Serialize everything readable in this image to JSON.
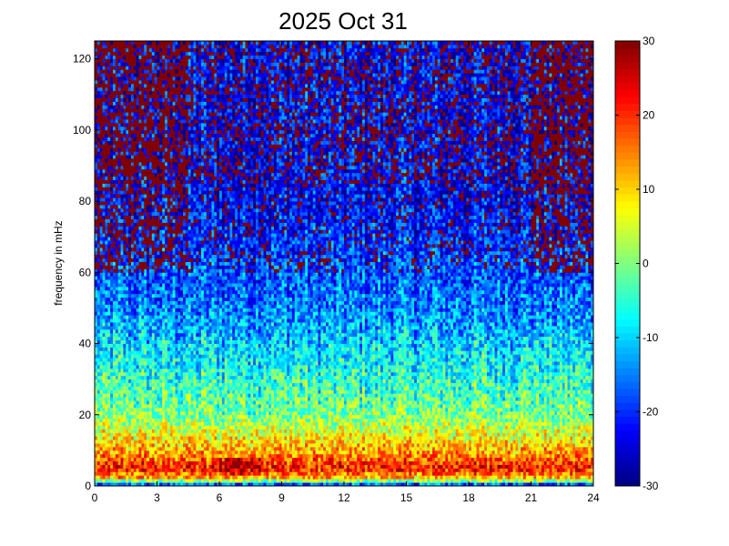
{
  "chart_data": {
    "type": "heatmap",
    "title": "2025 Oct 31",
    "xlabel": "",
    "ylabel": "frequency in mHz",
    "xlim": [
      0,
      24
    ],
    "ylim": [
      0,
      125
    ],
    "x_ticks": [
      0,
      3,
      6,
      9,
      12,
      15,
      18,
      21,
      24
    ],
    "y_ticks": [
      0,
      20,
      40,
      60,
      80,
      100,
      120
    ],
    "colorbar": {
      "colormap": "jet",
      "clim": [
        -30,
        30
      ],
      "ticks": [
        -30,
        -20,
        -10,
        0,
        10,
        20,
        30
      ]
    },
    "grid": false,
    "description_of_values": "Spectral power (colorbar units) vs hour of day (x) and frequency in mHz (y); highest power (~15-30) near 0-10 mHz, decreasing to ~-20 to -30 above 60 mHz, saturated (30) cells scattered in upper band especially hours 0-4 and 21-24.",
    "band_profile": [
      {
        "freq": 0,
        "value": -25
      },
      {
        "freq": 2,
        "value": 10
      },
      {
        "freq": 5,
        "value": 22
      },
      {
        "freq": 10,
        "value": 12
      },
      {
        "freq": 20,
        "value": 0
      },
      {
        "freq": 30,
        "value": -5
      },
      {
        "freq": 40,
        "value": -10
      },
      {
        "freq": 50,
        "value": -15
      },
      {
        "freq": 60,
        "value": -18
      },
      {
        "freq": 80,
        "value": -22
      },
      {
        "freq": 100,
        "value": -22
      },
      {
        "freq": 125,
        "value": -22
      }
    ]
  }
}
